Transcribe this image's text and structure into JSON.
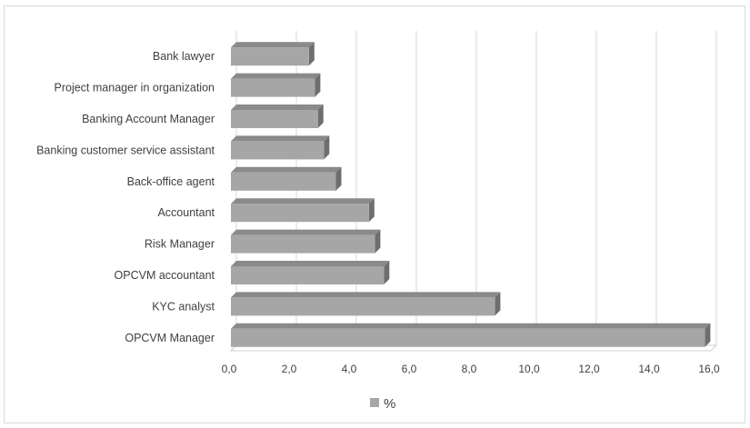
{
  "chart_data": {
    "type": "bar",
    "orientation": "horizontal",
    "style": "3d",
    "categories": [
      "Bank lawyer",
      "Project manager in organization",
      "Banking Account Manager",
      "Banking customer service assistant",
      "Back-office agent",
      "Accountant",
      "Risk Manager",
      "OPCVM accountant",
      "KYC analyst",
      "OPCVM Manager"
    ],
    "series": [
      {
        "name": "%",
        "values": [
          2.6,
          2.8,
          2.9,
          3.1,
          3.5,
          4.6,
          4.8,
          5.1,
          8.8,
          15.8
        ]
      }
    ],
    "x_ticks": [
      "0,0",
      "2,0",
      "4,0",
      "6,0",
      "8,0",
      "10,0",
      "12,0",
      "14,0",
      "16,0"
    ],
    "xlim": [
      0,
      16
    ],
    "grid": true,
    "legend": "bottom-center",
    "colors": {
      "bar_front": "#a6a6a6",
      "bar_top": "#8a8a8a",
      "bar_side": "#6e6e6e",
      "grid": "#d9d9d9",
      "text": "#404040"
    }
  }
}
